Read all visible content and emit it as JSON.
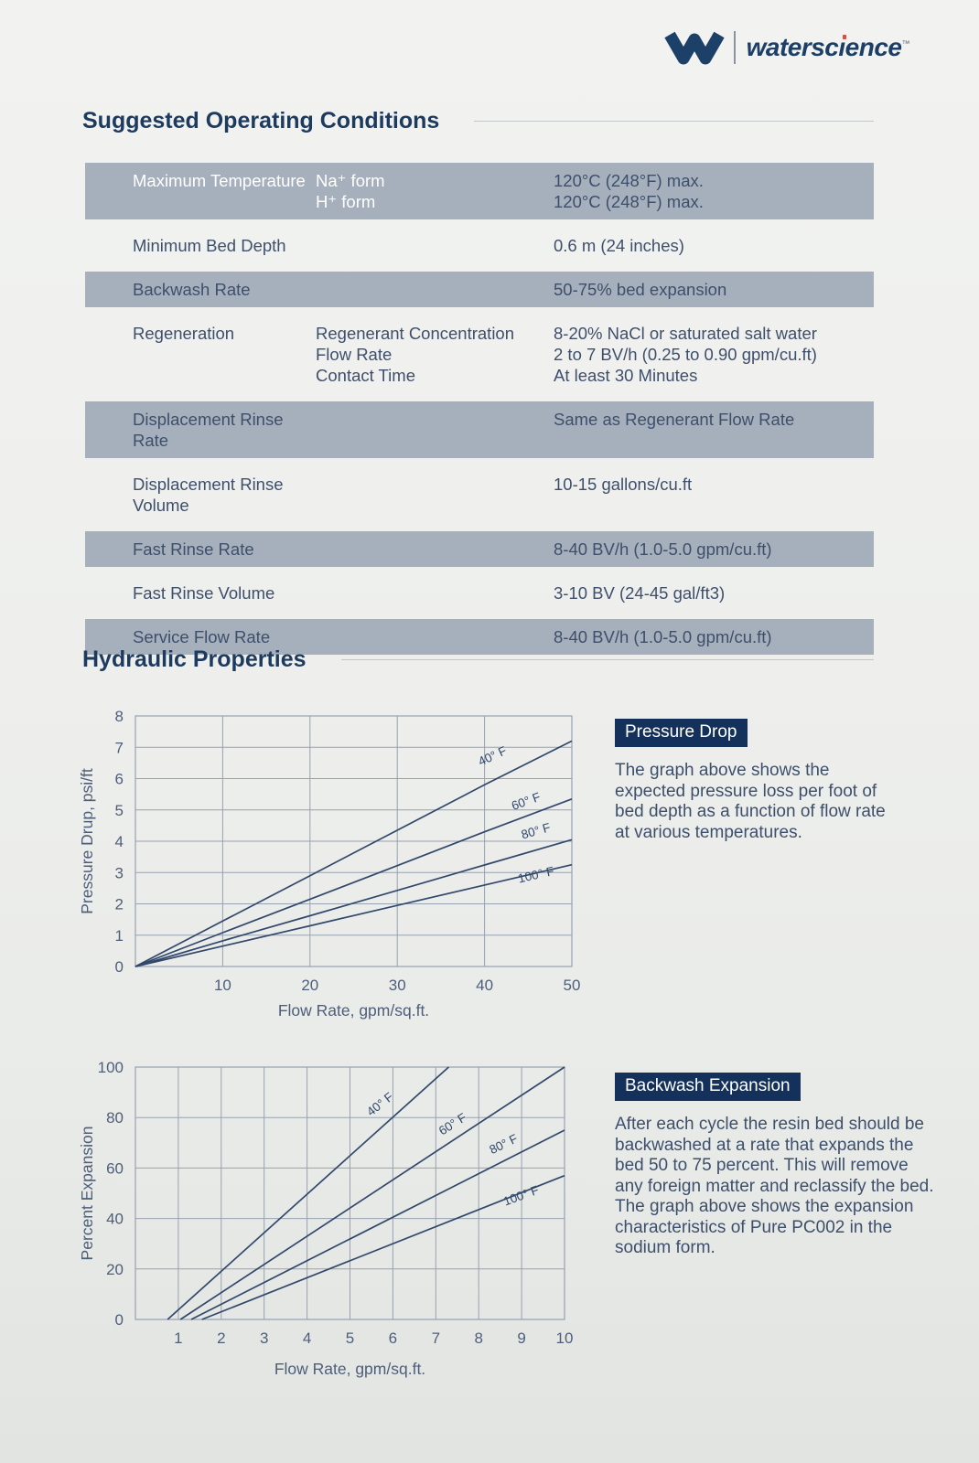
{
  "logo": {
    "brand": "waterscience",
    "brand_pre": "watersc",
    "brand_i": "ı",
    "brand_post": "ence",
    "tm": "™"
  },
  "sections": {
    "operating": {
      "title": "Suggested Operating Conditions"
    },
    "hydraulic": {
      "title": "Hydraulic Properties"
    }
  },
  "conditions_table": {
    "rows": [
      {
        "label": "Maximum Temperature",
        "shaded": true,
        "header": true,
        "sub": [
          {
            "name": "Na⁺ form",
            "value": "120°C (248°F) max."
          },
          {
            "name": "H⁺ form",
            "value": "120°C (248°F) max."
          }
        ]
      },
      {
        "label": "Minimum Bed Depth",
        "shaded": false,
        "value": "0.6 m (24 inches)"
      },
      {
        "label": "Backwash Rate",
        "shaded": true,
        "value": "50-75% bed expansion"
      },
      {
        "label": "Regeneration",
        "shaded": false,
        "sub": [
          {
            "name": "Regenerant Concentration",
            "value": "8-20% NaCl or saturated salt water"
          },
          {
            "name": "Flow Rate",
            "value": "2 to 7 BV/h (0.25 to 0.90 gpm/cu.ft)"
          },
          {
            "name": "Contact Time",
            "value": "At least 30 Minutes"
          }
        ]
      },
      {
        "label": "Displacement Rinse Rate",
        "shaded": true,
        "value": "Same as Regenerant Flow Rate"
      },
      {
        "label": "Displacement Rinse Volume",
        "shaded": false,
        "value": "10-15 gallons/cu.ft"
      },
      {
        "label": "Fast Rinse Rate",
        "shaded": true,
        "value": "8-40 BV/h (1.0-5.0 gpm/cu.ft)"
      },
      {
        "label": "Fast Rinse Volume",
        "shaded": false,
        "value": "3-10 BV (24-45 gal/ft3)"
      },
      {
        "label": "Service Flow Rate",
        "shaded": true,
        "value": "8-40 BV/h (1.0-5.0 gpm/cu.ft)"
      }
    ]
  },
  "pressure_panel": {
    "badge": "Pressure Drop",
    "text": "The graph above shows the expected pressure loss per foot of bed depth as a function of flow rate at various temperatures."
  },
  "backwash_panel": {
    "badge": "Backwash Expansion",
    "text": "After each cycle the resin bed should be backwashed at a rate that expands the bed 50 to 75 percent. This will remove any foreign matter and reclassify the bed. The graph above shows the expansion characteristics of Pure PC002 in the sodium form."
  },
  "colors": {
    "navy_heading": "#1d3a5f",
    "body_text": "#3e4f6b",
    "badge": "#14315b",
    "table_shade": "#a6b0bd",
    "chart_line": "#32486b",
    "chart_grid": "#97a1b0",
    "logo_red_dot": "#e04a41"
  },
  "chart_data": [
    {
      "type": "line",
      "title": "Pressure Drop",
      "xlabel": "Flow Rate, gpm/sq.ft.",
      "ylabel": "Pressure Drup, psi/ft",
      "xlim": [
        0,
        50
      ],
      "ylim": [
        0,
        8
      ],
      "xticks": [
        10,
        20,
        30,
        40,
        50
      ],
      "yticks": [
        0,
        1,
        2,
        3,
        4,
        5,
        6,
        7,
        8
      ],
      "grid": true,
      "legend": "inline-labels",
      "series": [
        {
          "name": "40° F",
          "points": [
            [
              0,
              0
            ],
            [
              10,
              1.45
            ],
            [
              20,
              2.9
            ],
            [
              30,
              4.35
            ],
            [
              40,
              5.8
            ],
            [
              50,
              7.2
            ]
          ],
          "label_at": [
            41.1,
            6.6
          ],
          "label_rot": -25
        },
        {
          "name": "60° F",
          "points": [
            [
              0,
              0
            ],
            [
              10,
              1.08
            ],
            [
              20,
              2.15
            ],
            [
              30,
              3.22
            ],
            [
              40,
              4.3
            ],
            [
              50,
              5.35
            ]
          ],
          "label_at": [
            44.9,
            5.15
          ],
          "label_rot": -20
        },
        {
          "name": "80° F",
          "points": [
            [
              0,
              0
            ],
            [
              10,
              0.82
            ],
            [
              20,
              1.62
            ],
            [
              30,
              2.43
            ],
            [
              40,
              3.24
            ],
            [
              50,
              4.05
            ]
          ],
          "label_at": [
            46.0,
            4.2
          ],
          "label_rot": -16
        },
        {
          "name": "100° F",
          "points": [
            [
              0,
              0
            ],
            [
              10,
              0.65
            ],
            [
              20,
              1.3
            ],
            [
              30,
              1.95
            ],
            [
              40,
              2.6
            ],
            [
              50,
              3.25
            ]
          ],
          "label_at": [
            46.0,
            2.8
          ],
          "label_rot": -13
        }
      ]
    },
    {
      "type": "line",
      "title": "Backwash Expansion",
      "xlabel": "Flow Rate, gpm/sq.ft.",
      "ylabel": "Percent Expansion",
      "xlim": [
        0,
        10
      ],
      "ylim": [
        0,
        100
      ],
      "xticks": [
        1,
        2,
        3,
        4,
        5,
        6,
        7,
        8,
        9,
        10
      ],
      "yticks": [
        0,
        20,
        40,
        60,
        80,
        100
      ],
      "grid": true,
      "legend": "inline-labels",
      "series": [
        {
          "name": "40° F",
          "points": [
            [
              0.75,
              0
            ],
            [
              7.3,
              100
            ]
          ],
          "label_at": [
            5.76,
            84
          ],
          "label_rot": -38
        },
        {
          "name": "60° F",
          "points": [
            [
              1.05,
              0
            ],
            [
              10,
              100
            ]
          ],
          "label_at": [
            7.44,
            76
          ],
          "label_rot": -32
        },
        {
          "name": "80° F",
          "points": [
            [
              1.3,
              0
            ],
            [
              10,
              75
            ]
          ],
          "label_at": [
            8.62,
            68
          ],
          "label_rot": -26
        },
        {
          "name": "100° F",
          "points": [
            [
              1.55,
              0
            ],
            [
              10,
              57
            ]
          ],
          "label_at": [
            9.02,
            47.5
          ],
          "label_rot": -20
        }
      ]
    }
  ]
}
